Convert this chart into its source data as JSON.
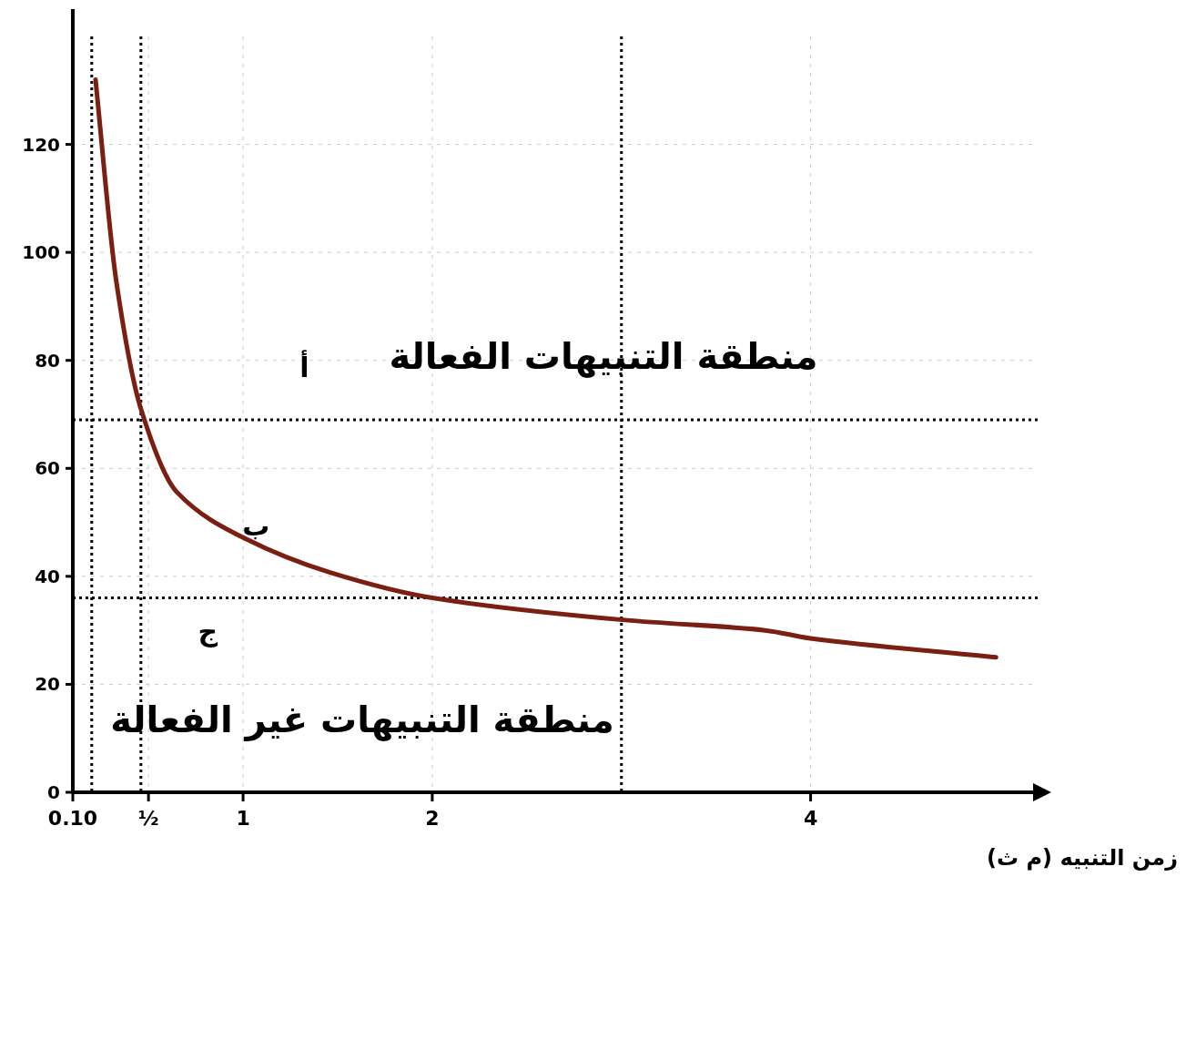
{
  "chart_data": {
    "type": "line",
    "xlabel": "زمن التنبيه (م ث)",
    "x": [
      0.22,
      0.33,
      0.46,
      0.65,
      1.01,
      1.46,
      2.0,
      3.02,
      3.76,
      4.0,
      4.98
    ],
    "values": [
      132,
      94.6,
      71,
      55.6,
      47,
      40.7,
      36,
      31.9,
      30,
      28.5,
      25
    ],
    "color": "#7a1f12",
    "xlim": [
      0.1,
      5.2
    ],
    "ylim": [
      0,
      140
    ],
    "xticks": [
      {
        "value": 0.1,
        "label": "0.10"
      },
      {
        "value": 0.5,
        "label": "½"
      },
      1,
      2,
      4
    ],
    "yticks": [
      0,
      20,
      40,
      60,
      80,
      100,
      120
    ],
    "grid": true,
    "ref_lines": [
      {
        "axis": "y",
        "value": 69,
        "color": "#000000",
        "line_style": "dotted"
      },
      {
        "axis": "y",
        "value": 36,
        "color": "#000000",
        "line_style": "dotted"
      },
      {
        "axis": "x",
        "value": 0.2,
        "color": "#000000",
        "line_style": "dotted"
      },
      {
        "axis": "x",
        "value": 0.46,
        "color": "#000000",
        "line_style": "dotted"
      },
      {
        "axis": "x",
        "value": 3.0,
        "color": "#000000",
        "line_style": "dotted"
      }
    ],
    "annotations": [
      "منطقة التنبيهات الفعالة",
      "منطقة التنبيهات غير الفعالة",
      "أ",
      "ب",
      "ج"
    ]
  }
}
